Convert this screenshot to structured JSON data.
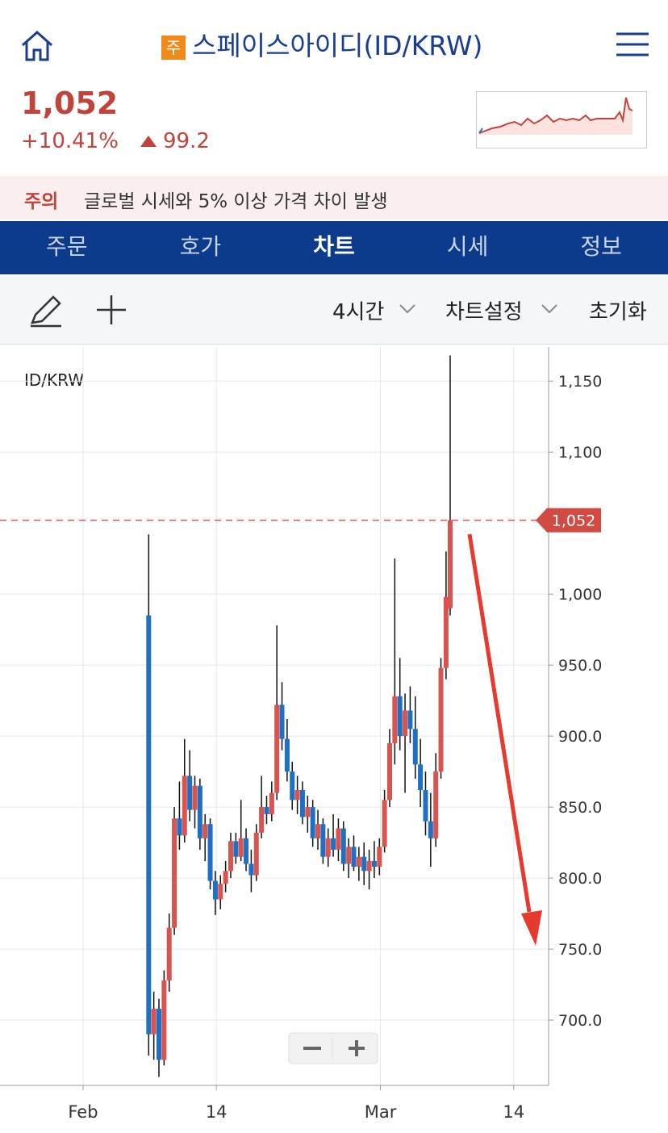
{
  "header": {
    "badge": "주",
    "title": "스페이스아이디(ID/KRW)"
  },
  "price": {
    "value": "1,052",
    "change_pct": "+10.41%",
    "change": "99.2"
  },
  "notice": {
    "label": "주의",
    "text": "글로벌 시세와 5% 이상 가격 차이 발생"
  },
  "tabs": [
    "주문",
    "호가",
    "차트",
    "시세",
    "정보"
  ],
  "toolbar": {
    "interval": "4시간",
    "settings": "차트설정",
    "reset": "초기화"
  },
  "chart_data": {
    "type": "candlestick",
    "title": "ID/KRW",
    "last_price_label": "1,052",
    "last_price": 1052,
    "up_color": "#d9534f",
    "down_color": "#1f6fc5",
    "xlim": [
      -8.1,
      45.4
    ],
    "xticks": [
      {
        "value": 0,
        "label": "Feb"
      },
      {
        "value": 13,
        "label": "14"
      },
      {
        "value": 29,
        "label": "Mar"
      },
      {
        "value": 42,
        "label": "14"
      }
    ],
    "ylim": [
      654,
      1174
    ],
    "yticks": [
      {
        "value": 700,
        "label": "700.0"
      },
      {
        "value": 750,
        "label": "750.0"
      },
      {
        "value": 800,
        "label": "800.0"
      },
      {
        "value": 850,
        "label": "850.0"
      },
      {
        "value": 900,
        "label": "900.0"
      },
      {
        "value": 950,
        "label": "950.0"
      },
      {
        "value": 1000,
        "label": "1,000"
      },
      {
        "value": 1100,
        "label": "1,100"
      },
      {
        "value": 1150,
        "label": "1,150"
      }
    ],
    "grid": true,
    "x": [
      6.4,
      6.9,
      7.4,
      7.9,
      8.4,
      8.9,
      9.4,
      9.9,
      10.4,
      10.9,
      11.4,
      11.9,
      12.4,
      12.9,
      13.4,
      13.9,
      14.4,
      14.9,
      15.4,
      15.9,
      16.4,
      16.9,
      17.4,
      17.9,
      18.4,
      18.9,
      19.4,
      19.9,
      20.4,
      20.9,
      21.4,
      21.9,
      22.4,
      22.9,
      23.4,
      23.9,
      24.4,
      24.9,
      25.4,
      25.9,
      26.4,
      26.9,
      27.4,
      27.9,
      28.4,
      28.9,
      29.4,
      29.9,
      30.4,
      30.9,
      31.4,
      31.9,
      32.4,
      32.9,
      33.4,
      33.9,
      34.4,
      34.9,
      35.4,
      35.8
    ],
    "open": [
      985,
      690,
      708,
      672,
      728,
      765,
      842,
      830,
      872,
      848,
      865,
      828,
      838,
      798,
      785,
      796,
      805,
      826,
      815,
      828,
      810,
      802,
      832,
      850,
      845,
      860,
      922,
      898,
      875,
      855,
      862,
      843,
      850,
      828,
      838,
      815,
      828,
      820,
      835,
      810,
      822,
      808,
      815,
      805,
      812,
      808,
      822,
      855,
      895,
      928,
      900,
      918,
      905,
      880,
      862,
      840,
      828,
      875,
      948,
      990
    ],
    "high": [
      1042,
      720,
      715,
      735,
      775,
      850,
      868,
      898,
      890,
      872,
      870,
      845,
      842,
      805,
      802,
      812,
      832,
      832,
      855,
      835,
      820,
      838,
      872,
      858,
      868,
      978,
      938,
      912,
      882,
      872,
      868,
      858,
      855,
      848,
      842,
      835,
      845,
      842,
      840,
      828,
      830,
      822,
      825,
      820,
      826,
      828,
      862,
      905,
      1025,
      955,
      930,
      935,
      928,
      898,
      875,
      860,
      888,
      955,
      1030,
      1168
    ],
    "low": [
      675,
      672,
      660,
      668,
      720,
      760,
      820,
      825,
      840,
      835,
      820,
      812,
      792,
      774,
      778,
      790,
      800,
      810,
      812,
      805,
      790,
      798,
      828,
      838,
      840,
      855,
      890,
      868,
      848,
      845,
      838,
      832,
      822,
      820,
      810,
      808,
      815,
      812,
      805,
      800,
      805,
      798,
      795,
      792,
      800,
      802,
      818,
      850,
      880,
      890,
      860,
      895,
      870,
      850,
      830,
      808,
      822,
      870,
      940,
      985
    ],
    "close": [
      690,
      708,
      672,
      728,
      765,
      842,
      830,
      872,
      848,
      865,
      828,
      838,
      798,
      785,
      796,
      805,
      826,
      815,
      828,
      810,
      802,
      832,
      850,
      845,
      860,
      922,
      898,
      875,
      855,
      862,
      843,
      850,
      828,
      838,
      815,
      828,
      820,
      835,
      810,
      822,
      808,
      815,
      805,
      812,
      808,
      822,
      855,
      895,
      928,
      900,
      918,
      905,
      880,
      862,
      840,
      828,
      875,
      948,
      998,
      1052
    ]
  }
}
